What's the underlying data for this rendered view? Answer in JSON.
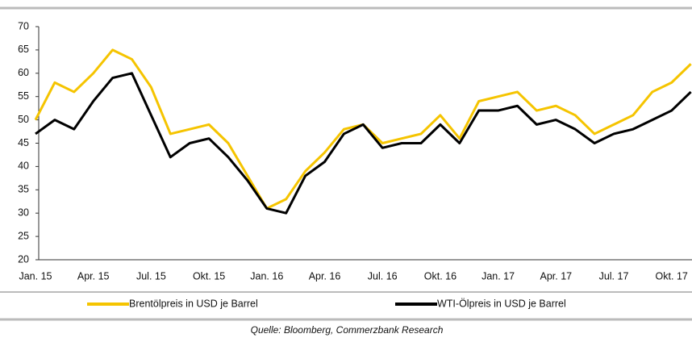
{
  "chart_data": {
    "type": "line",
    "categories": [
      "Jan. 15",
      null,
      null,
      "Apr. 15",
      null,
      null,
      "Jul. 15",
      null,
      null,
      "Okt. 15",
      null,
      null,
      "Jan. 16",
      null,
      null,
      "Apr. 16",
      null,
      null,
      "Jul. 16",
      null,
      null,
      "Okt. 16",
      null,
      null,
      "Jan. 17",
      null,
      null,
      "Apr. 17",
      null,
      null,
      "Jul. 17",
      null,
      null,
      "Okt. 17",
      null
    ],
    "series": [
      {
        "name": "Brentölpreis in USD je Barrel",
        "color": "#f5c400",
        "values": [
          50,
          58,
          56,
          60,
          65,
          63,
          57,
          47,
          48,
          49,
          45,
          38,
          31,
          33,
          39,
          43,
          48,
          49,
          45,
          46,
          47,
          51,
          46,
          54,
          55,
          56,
          52,
          53,
          51,
          47,
          49,
          51,
          56,
          58,
          62
        ]
      },
      {
        "name": "WTI-Ölpreis in USD je Barrel",
        "color": "#000000",
        "values": [
          47,
          50,
          48,
          54,
          59,
          60,
          51,
          42,
          45,
          46,
          42,
          37,
          31,
          30,
          38,
          41,
          47,
          49,
          44,
          45,
          45,
          49,
          45,
          52,
          52,
          53,
          49,
          50,
          48,
          45,
          47,
          48,
          50,
          52,
          56
        ]
      }
    ],
    "ylim": [
      20,
      70
    ],
    "yticks": [
      20,
      25,
      30,
      35,
      40,
      45,
      50,
      55,
      60,
      65,
      70
    ],
    "source": "Quelle: Bloomberg, Commerzbank Research"
  }
}
